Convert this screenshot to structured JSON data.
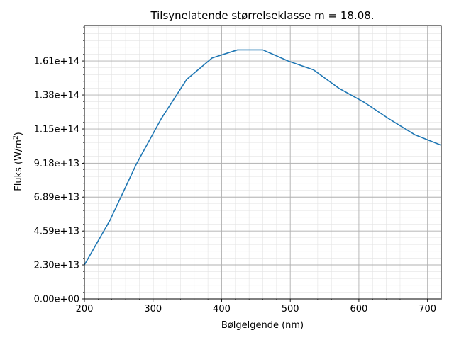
{
  "chart_data": {
    "type": "line",
    "title": "Tilsynelatende størrelseklasse m = 18.08.",
    "xlabel": "Bølgelgende (nm)",
    "ylabel_main": "Fluks (W/m",
    "ylabel_sup": "2",
    "ylabel_close": ")",
    "xlim": [
      200,
      720
    ],
    "ylim": [
      0,
      185000000000000.0
    ],
    "xticks": [
      200,
      300,
      400,
      500,
      600,
      700
    ],
    "xtick_labels": [
      "200",
      "300",
      "400",
      "500",
      "600",
      "700"
    ],
    "yticks": [
      0,
      23000000000000.0,
      45900000000000.0,
      68900000000000.0,
      91800000000000.0,
      115000000000000.0,
      138000000000000.0,
      161000000000000.0
    ],
    "ytick_labels": [
      "0.00e+00",
      "2.30e+13",
      "4.59e+13",
      "6.89e+13",
      "9.18e+13",
      "1.15e+14",
      "1.38e+14",
      "1.61e+14"
    ],
    "grid": true,
    "minor_grid": true,
    "series": [
      {
        "color": "#1f77b4",
        "x": [
          200,
          237,
          276,
          312,
          349,
          386,
          423,
          460,
          497,
          534,
          571,
          608,
          645,
          682,
          720
        ],
        "y": [
          23000000000000.0,
          53000000000000.0,
          91500000000000.0,
          122000000000000.0,
          148500000000000.0,
          163000000000000.0,
          168500000000000.0,
          168500000000000.0,
          161000000000000.0,
          155000000000000.0,
          142500000000000.0,
          133000000000000.0,
          121500000000000.0,
          111000000000000.0,
          104000000000000.0
        ]
      }
    ]
  }
}
